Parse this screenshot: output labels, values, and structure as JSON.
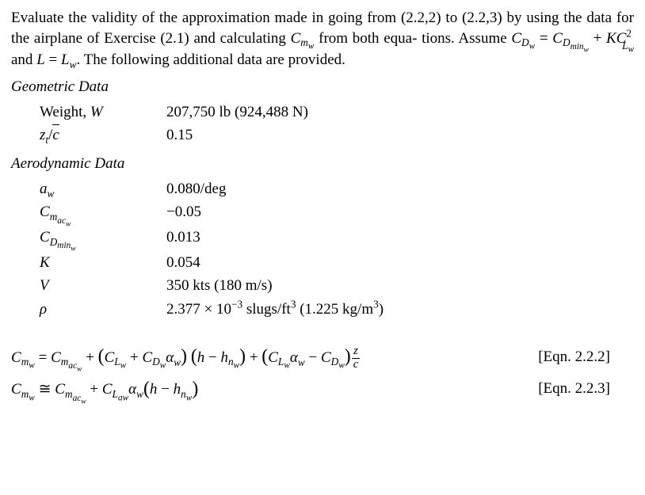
{
  "paragraph": {
    "p1a": "Evaluate the validity of the approximation made in going from (2.2,2) to (2.2,3) by using the data for the airplane of Exercise (2.1) and calculating ",
    "p1b": " from both equa-",
    "p2a": "tions. Assume ",
    "p2b": " and ",
    "p2c": ". The following additional data are provided."
  },
  "geometric": {
    "heading": "Geometric Data",
    "rows": [
      {
        "symHtml": "Weight, <span class=\"it\">W</span>",
        "valHtml": "207,750 lb (924,488 N)"
      },
      {
        "symHtml": "<span class=\"it\">z<sub>t</sub></span>/<span class=\"ov\">c</span>",
        "valHtml": "0.15"
      }
    ]
  },
  "aero": {
    "heading": "Aerodynamic Data",
    "rows": [
      {
        "symHtml": "<span class=\"it\">a<sub>w</sub></span>",
        "valHtml": "0.080/deg"
      },
      {
        "symHtml": "<span class=\"it\">C<sub>m<sub>ac<sub>w</sub></sub></sub></span>",
        "valHtml": "&minus;0.05"
      },
      {
        "symHtml": "<span class=\"it\">C<sub>D<sub>min<sub>w</sub></sub></sub></span>",
        "valHtml": "0.013"
      },
      {
        "symHtml": "<span class=\"it\">K</span>",
        "valHtml": "0.054"
      },
      {
        "symHtml": "<span class=\"it\">V</span>",
        "valHtml": "350 kts (180 m/s)"
      },
      {
        "symHtml": "<span class=\"it\">&rho;</span>",
        "valHtml": "2.377 &times; 10<sup>&minus;3</sup> slugs/ft<sup>3</sup> (1.225 kg/m<sup>3</sup>)"
      }
    ]
  },
  "equations": {
    "eq1": {
      "html": "<span class=\"it\">C<sub>m<sub>w</sub></sub></span> = <span class=\"it\">C<sub>m<sub>ac<sub>w</sub></sub></sub></span> + <span class=\"bigl\">(</span><span class=\"it\">C<sub>L<sub>w</sub></sub></span> + <span class=\"it\">C<sub>D<sub>w</sub></sub>&alpha;<sub>w</sub></span><span class=\"bigr\">)</span> <span class=\"bigl\">(</span><span class=\"it\">h</span> &minus; <span class=\"it\">h<sub>n<sub>w</sub></sub></span><span class=\"bigr\">)</span> + <span class=\"bigl\">(</span><span class=\"it\">C<sub>L<sub>w</sub></sub>&alpha;<sub>w</sub></span> &minus; <span class=\"it\">C<sub>D<sub>w</sub></sub></span><span class=\"bigr\">)</span><span class=\"frac\"><span class=\"num\"><span class=\"it\">z</span></span><span class=\"den\"><span class=\"ov\">c</span></span></span>",
      "label": "[Eqn. 2.2.2]"
    },
    "eq2": {
      "html": "<span class=\"it\">C<sub>m<sub>w</sub></sub></span> &#8773; <span class=\"it\">C<sub>m<sub>ac<sub>w</sub></sub></sub></span> + <span class=\"it\">C<sub>L<sub>aw</sub></sub>&alpha;<sub>w</sub></span><span class=\"bigl\">(</span><span class=\"it\">h</span> &minus; <span class=\"it\">h<sub>n<sub>w</sub></sub></span><span class=\"bigr\">)</span>",
      "label": "[Eqn. 2.2.3]"
    }
  },
  "inlineMath": {
    "Cmw": "<span class=\"it\">C<sub>m<sub>w</sub></sub></span>",
    "assumeEq": "<span class=\"it\">C<sub>D<sub>w</sub></sub></span> = <span class=\"it\">C<sub>D<sub>min<sub>w</sub></sub></sub></span> + <span class=\"it\">KC</span><sup>2</sup><sub style=\"margin-left:-0.9em; position:relative; top:0.25em;\"><span class=\"it\">L<sub>w</sub></span></sub>",
    "LeqLw": "<span class=\"it\">L</span> = <span class=\"it\">L<sub>w</sub></span>"
  }
}
